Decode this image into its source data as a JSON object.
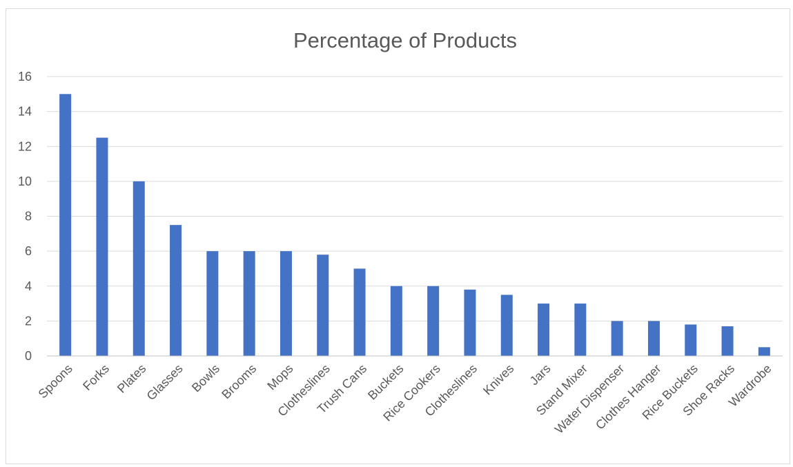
{
  "chart_data": {
    "type": "bar",
    "title": "Percentage of Products",
    "xlabel": "",
    "ylabel": "",
    "categories": [
      "Spoons",
      "Forks",
      "Plates",
      "Glasses",
      "Bowls",
      "Brooms",
      "Mops",
      "Clotheslines",
      "Trush Cans",
      "Buckets",
      "Rice Cookers",
      "Clotheslines",
      "Knives",
      "Jars",
      "Stand Mixer",
      "Water Dispenser",
      "Clothes Hanger",
      "Rice Buckets",
      "Shoe Racks",
      "Wardrobe"
    ],
    "values": [
      15,
      12.5,
      10,
      7.5,
      6,
      6,
      6,
      5.8,
      5,
      4,
      4,
      3.8,
      3.5,
      3,
      3,
      2,
      2,
      1.8,
      1.7,
      0.5
    ],
    "ylim": [
      0,
      16
    ],
    "yticks": [
      "0",
      "2",
      "4",
      "6",
      "8",
      "10",
      "12",
      "14",
      "16"
    ],
    "grid": true,
    "legend": "none",
    "bar_color": "#4472c4"
  }
}
